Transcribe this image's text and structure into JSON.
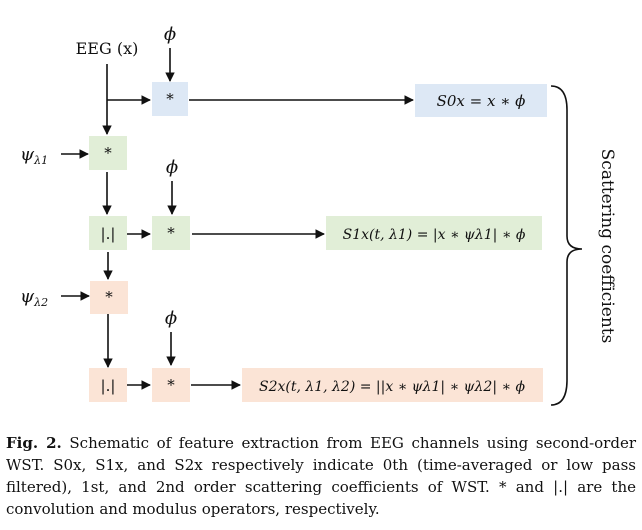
{
  "colors": {
    "blue_box": "#dde8f5",
    "green_box": "#e1eed7",
    "peach_box": "#fbe4d6",
    "line": "#111111"
  },
  "inputs": {
    "eeg": "EEG (x)",
    "phi": "ϕ",
    "psi1": "ψ",
    "psi1_sub": "λ1",
    "psi2": "ψ",
    "psi2_sub": "λ2"
  },
  "operators": {
    "convolution": "*",
    "modulus": "|.|"
  },
  "outputs": {
    "s0": "S0x = x ∗ ϕ",
    "s1": "S1x(t, λ1) = |x ∗ ψλ1| ∗ ϕ",
    "s2": "S2x(t, λ1, λ2) = ||x ∗ ψλ1| ∗ ψλ2| ∗ ϕ"
  },
  "group_label": "Scattering coefficients",
  "caption": {
    "label": "Fig. 2.",
    "text": "Schematic of feature extraction from EEG channels using second-order WST. S0x, S1x, and S2x respectively indicate 0th (time-averaged or low pass filtered), 1st, and 2nd order scattering coefficients of WST. * and |.| are the convolution and modulus operators, respectively."
  }
}
